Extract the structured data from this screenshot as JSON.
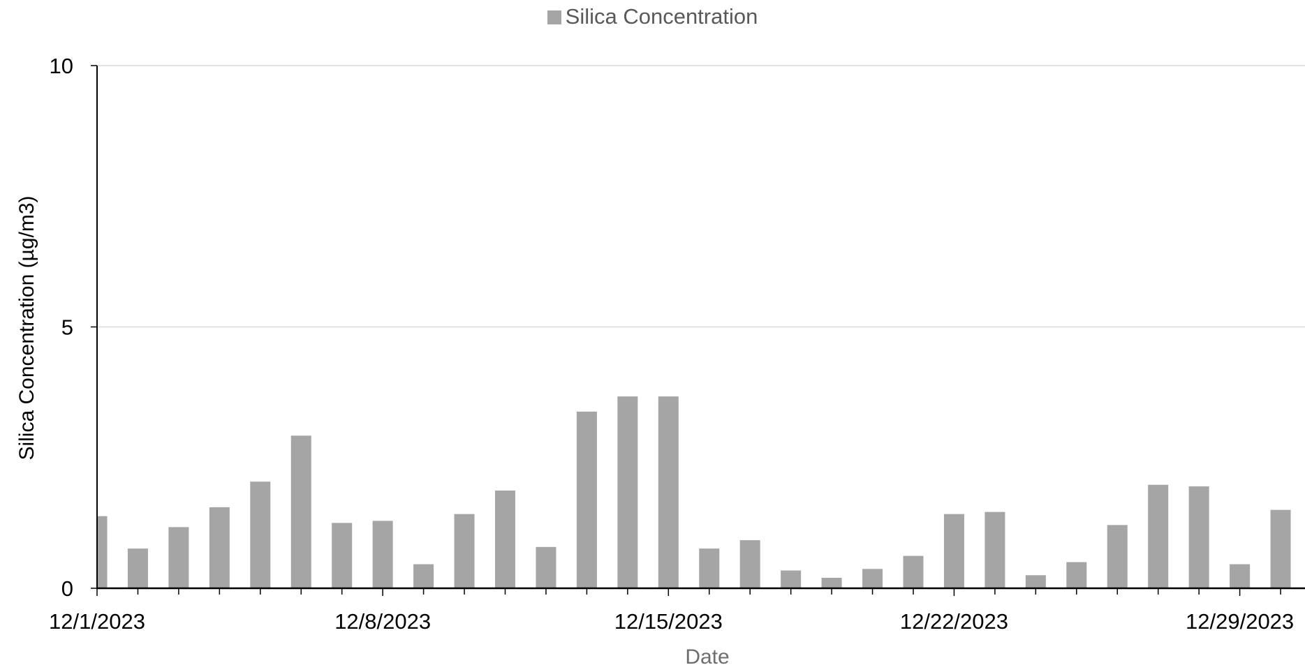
{
  "chart_data": {
    "type": "bar",
    "legend": {
      "position": "top",
      "entries": [
        "Silica Concentration"
      ]
    },
    "xlabel": "Date",
    "ylabel": "Silica Concentration (µg/m3)",
    "ylim": [
      0,
      10
    ],
    "yticks": [
      0,
      5,
      10
    ],
    "grid": true,
    "xticks": [
      "12/1/2023",
      "12/8/2023",
      "12/15/2023",
      "12/22/2023",
      "12/29/2023"
    ],
    "series": [
      {
        "name": "Silica Concentration",
        "color": "#a5a5a5",
        "x": [
          "12/1/2023",
          "12/2/2023",
          "12/3/2023",
          "12/4/2023",
          "12/5/2023",
          "12/6/2023",
          "12/7/2023",
          "12/8/2023",
          "12/9/2023",
          "12/10/2023",
          "12/11/2023",
          "12/12/2023",
          "12/13/2023",
          "12/14/2023",
          "12/15/2023",
          "12/16/2023",
          "12/17/2023",
          "12/18/2023",
          "12/19/2023",
          "12/20/2023",
          "12/21/2023",
          "12/22/2023",
          "12/23/2023",
          "12/24/2023",
          "12/25/2023",
          "12/26/2023",
          "12/27/2023",
          "12/28/2023",
          "12/29/2023",
          "12/30/2023"
        ],
        "values": [
          1.38,
          0.76,
          1.17,
          1.55,
          2.04,
          2.92,
          1.25,
          1.29,
          0.46,
          1.42,
          1.87,
          0.79,
          3.38,
          3.67,
          3.67,
          0.76,
          0.92,
          0.34,
          0.2,
          0.37,
          0.62,
          1.42,
          1.46,
          0.25,
          0.5,
          1.21,
          1.98,
          1.95,
          0.46,
          1.5
        ]
      }
    ]
  }
}
